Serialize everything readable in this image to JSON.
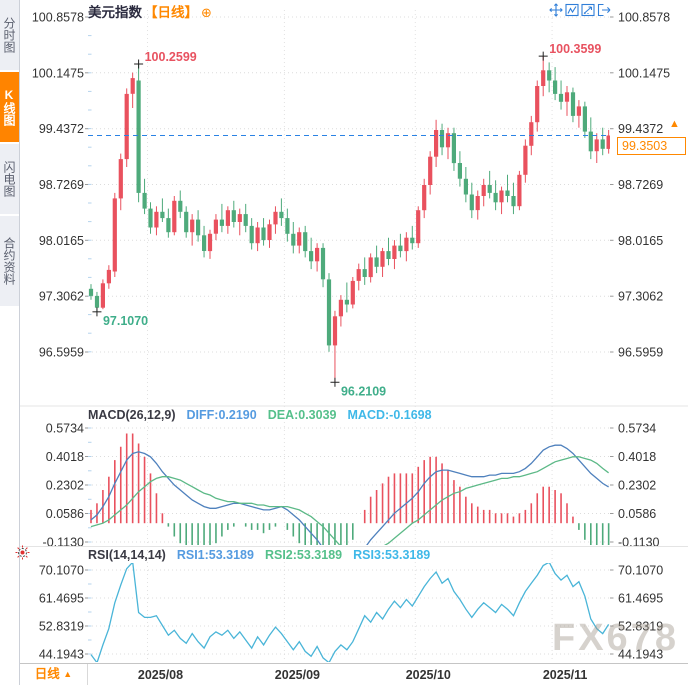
{
  "header": {
    "symbol": "美元指数",
    "period_tag": "【日线】",
    "add_icon": "⊕"
  },
  "sidebar": {
    "tabs": [
      {
        "label": "分时图",
        "active": false
      },
      {
        "label": "K线图",
        "active": true
      },
      {
        "label": "闪电图",
        "active": false
      },
      {
        "label": "合约资料",
        "active": false
      }
    ]
  },
  "toolbar": {
    "icons": [
      "crosshair-move",
      "indicator-scale-chart",
      "trend-arrow-chart",
      "exit-chart"
    ]
  },
  "price_marker": {
    "value": "99.3503",
    "arrow_up": "▲"
  },
  "bottom_bar": {
    "period_label": "日线",
    "arrow": "▲"
  },
  "watermark": {
    "text": "FX678"
  },
  "colors": {
    "up": "#e9515e",
    "down": "#4eaa7b",
    "accent_orange": "#ff8800",
    "dashed_price_line": "#2a82e4",
    "diff_line": "#4f81bd",
    "dea_line": "#5cb987",
    "rsi_line": "#4ab5d8",
    "annotation_high": "#e85260",
    "annotation_low": "#3fae8a",
    "axis_text": "#333333"
  },
  "chart_data": [
    {
      "type": "candlestick",
      "title": "美元指数 日线",
      "price_ticks": [
        "100.8578",
        "100.1475",
        "99.4372",
        "98.7269",
        "98.0165",
        "97.3062",
        "96.5959"
      ],
      "ylim": [
        96.2109,
        100.8578
      ],
      "current_price": 99.3503,
      "months": [
        {
          "label": "2025/08",
          "candle_index": 10
        },
        {
          "label": "2025/09",
          "candle_index": 33
        },
        {
          "label": "2025/10",
          "candle_index": 55
        },
        {
          "label": "2025/11",
          "candle_index": 78
        }
      ],
      "annotations": [
        {
          "candle_index": 8,
          "price": 100.2599,
          "text": "100.2599",
          "type": "high"
        },
        {
          "candle_index": 76,
          "price": 100.3599,
          "text": "100.3599",
          "type": "high"
        },
        {
          "candle_index": 1,
          "price": 97.107,
          "text": "97.1070",
          "type": "low"
        },
        {
          "candle_index": 41,
          "price": 96.2109,
          "text": "96.2109",
          "type": "low"
        }
      ],
      "ohlc_format": [
        "open",
        "high",
        "low",
        "close"
      ],
      "candles": [
        [
          97.4,
          97.46,
          97.26,
          97.31
        ],
        [
          97.31,
          97.36,
          97.107,
          97.16
        ],
        [
          97.16,
          97.52,
          97.14,
          97.47
        ],
        [
          97.47,
          97.7,
          97.4,
          97.64
        ],
        [
          97.62,
          98.62,
          97.55,
          98.55
        ],
        [
          98.55,
          99.12,
          98.4,
          99.05
        ],
        [
          99.05,
          99.95,
          98.95,
          99.88
        ],
        [
          99.88,
          100.15,
          99.7,
          100.08
        ],
        [
          100.05,
          100.2599,
          98.5,
          98.62
        ],
        [
          98.62,
          98.8,
          98.35,
          98.42
        ],
        [
          98.42,
          98.5,
          98.1,
          98.18
        ],
        [
          98.18,
          98.45,
          98.08,
          98.38
        ],
        [
          98.38,
          98.55,
          98.25,
          98.3
        ],
        [
          98.3,
          98.42,
          98.05,
          98.12
        ],
        [
          98.12,
          98.58,
          98.08,
          98.52
        ],
        [
          98.52,
          98.65,
          98.3,
          98.38
        ],
        [
          98.38,
          98.45,
          98.05,
          98.12
        ],
        [
          98.12,
          98.35,
          97.95,
          98.28
        ],
        [
          98.28,
          98.4,
          98.0,
          98.08
        ],
        [
          98.08,
          98.2,
          97.8,
          97.88
        ],
        [
          97.88,
          98.15,
          97.78,
          98.1
        ],
        [
          98.1,
          98.35,
          98.02,
          98.28
        ],
        [
          98.28,
          98.48,
          98.12,
          98.2
        ],
        [
          98.2,
          98.45,
          98.1,
          98.4
        ],
        [
          98.4,
          98.52,
          98.18,
          98.25
        ],
        [
          98.25,
          98.42,
          98.08,
          98.35
        ],
        [
          98.35,
          98.48,
          98.12,
          98.2
        ],
        [
          98.2,
          98.3,
          97.9,
          97.98
        ],
        [
          97.98,
          98.25,
          97.88,
          98.18
        ],
        [
          98.18,
          98.3,
          97.95,
          98.02
        ],
        [
          98.02,
          98.28,
          97.92,
          98.22
        ],
        [
          98.22,
          98.45,
          98.1,
          98.38
        ],
        [
          98.38,
          98.55,
          98.2,
          98.3
        ],
        [
          98.3,
          98.42,
          98.0,
          98.1
        ],
        [
          98.1,
          98.25,
          97.85,
          97.95
        ],
        [
          97.95,
          98.18,
          97.85,
          98.12
        ],
        [
          98.12,
          98.2,
          97.8,
          97.88
        ],
        [
          97.88,
          98.05,
          97.65,
          97.75
        ],
        [
          97.75,
          97.98,
          97.62,
          97.92
        ],
        [
          97.92,
          97.98,
          97.42,
          97.52
        ],
        [
          97.52,
          97.6,
          96.6,
          96.68
        ],
        [
          96.68,
          97.12,
          96.2109,
          97.05
        ],
        [
          97.05,
          97.32,
          96.92,
          97.26
        ],
        [
          97.26,
          97.48,
          97.1,
          97.2
        ],
        [
          97.2,
          97.55,
          97.15,
          97.5
        ],
        [
          97.5,
          97.72,
          97.38,
          97.65
        ],
        [
          97.65,
          97.8,
          97.45,
          97.55
        ],
        [
          97.55,
          97.85,
          97.48,
          97.8
        ],
        [
          97.8,
          97.95,
          97.6,
          97.68
        ],
        [
          97.68,
          97.92,
          97.55,
          97.88
        ],
        [
          97.88,
          98.05,
          97.7,
          97.78
        ],
        [
          97.78,
          98.02,
          97.65,
          97.95
        ],
        [
          97.95,
          98.1,
          97.8,
          97.88
        ],
        [
          97.88,
          98.12,
          97.75,
          98.05
        ],
        [
          98.05,
          98.2,
          97.9,
          97.98
        ],
        [
          97.98,
          98.45,
          97.92,
          98.4
        ],
        [
          98.4,
          98.8,
          98.3,
          98.72
        ],
        [
          98.72,
          99.15,
          98.6,
          99.08
        ],
        [
          99.08,
          99.55,
          98.95,
          99.42
        ],
        [
          99.42,
          99.5,
          99.1,
          99.2
        ],
        [
          99.2,
          99.45,
          99.05,
          99.38
        ],
        [
          99.38,
          99.45,
          98.9,
          99.0
        ],
        [
          99.0,
          99.15,
          98.7,
          98.8
        ],
        [
          98.8,
          98.95,
          98.5,
          98.6
        ],
        [
          98.6,
          98.75,
          98.3,
          98.4
        ],
        [
          98.4,
          98.65,
          98.28,
          98.58
        ],
        [
          98.58,
          98.8,
          98.45,
          98.72
        ],
        [
          98.72,
          98.9,
          98.55,
          98.62
        ],
        [
          98.62,
          98.78,
          98.4,
          98.5
        ],
        [
          98.5,
          98.7,
          98.35,
          98.65
        ],
        [
          98.65,
          98.85,
          98.5,
          98.58
        ],
        [
          98.58,
          98.75,
          98.35,
          98.45
        ],
        [
          98.45,
          98.9,
          98.4,
          98.85
        ],
        [
          98.85,
          99.3,
          98.75,
          99.22
        ],
        [
          99.22,
          99.6,
          99.1,
          99.52
        ],
        [
          99.52,
          100.05,
          99.4,
          99.98
        ],
        [
          99.98,
          100.3599,
          99.85,
          100.18
        ],
        [
          100.18,
          100.28,
          99.9,
          100.05
        ],
        [
          100.05,
          100.22,
          99.8,
          99.88
        ],
        [
          99.88,
          100.05,
          99.68,
          99.78
        ],
        [
          99.78,
          99.98,
          99.6,
          99.9
        ],
        [
          99.9,
          99.96,
          99.52,
          99.6
        ],
        [
          99.6,
          99.8,
          99.45,
          99.72
        ],
        [
          99.72,
          99.78,
          99.32,
          99.4
        ],
        [
          99.4,
          99.58,
          99.05,
          99.15
        ],
        [
          99.15,
          99.38,
          99.0,
          99.3
        ],
        [
          99.3,
          99.45,
          99.1,
          99.18
        ],
        [
          99.18,
          99.42,
          99.12,
          99.3503
        ]
      ]
    },
    {
      "type": "macd",
      "legend": {
        "name": "MACD(26,12,9)",
        "diff": "DIFF:0.2190",
        "dea": "DEA:0.3039",
        "macd": "MACD:-0.1698"
      },
      "params": [
        26,
        12,
        9
      ],
      "values": {
        "diff": 0.219,
        "dea": 0.3039,
        "macd": -0.1698
      },
      "ticks": [
        "0.5734",
        "0.4018",
        "0.2302",
        "0.0586",
        "-0.1130"
      ],
      "diff_series": [
        0.02,
        0.05,
        0.1,
        0.16,
        0.24,
        0.31,
        0.38,
        0.42,
        0.43,
        0.42,
        0.4,
        0.36,
        0.31,
        0.27,
        0.23,
        0.2,
        0.17,
        0.14,
        0.12,
        0.1,
        0.09,
        0.09,
        0.1,
        0.11,
        0.12,
        0.12,
        0.11,
        0.1,
        0.09,
        0.08,
        0.08,
        0.09,
        0.1,
        0.08,
        0.05,
        0.02,
        -0.02,
        -0.06,
        -0.1,
        -0.15,
        -0.22,
        -0.28,
        -0.3,
        -0.28,
        -0.24,
        -0.2,
        -0.15,
        -0.1,
        -0.06,
        -0.02,
        0.02,
        0.06,
        0.09,
        0.12,
        0.15,
        0.19,
        0.24,
        0.28,
        0.31,
        0.32,
        0.32,
        0.31,
        0.3,
        0.29,
        0.28,
        0.28,
        0.28,
        0.29,
        0.29,
        0.3,
        0.3,
        0.3,
        0.31,
        0.33,
        0.36,
        0.4,
        0.44,
        0.46,
        0.47,
        0.47,
        0.45,
        0.42,
        0.38,
        0.34,
        0.3,
        0.27,
        0.24,
        0.219
      ],
      "dea_series": [
        -0.02,
        -0.01,
        0.0,
        0.02,
        0.05,
        0.08,
        0.11,
        0.15,
        0.19,
        0.22,
        0.25,
        0.27,
        0.28,
        0.28,
        0.27,
        0.26,
        0.24,
        0.22,
        0.2,
        0.18,
        0.17,
        0.15,
        0.14,
        0.13,
        0.13,
        0.12,
        0.12,
        0.12,
        0.11,
        0.11,
        0.1,
        0.1,
        0.1,
        0.1,
        0.09,
        0.08,
        0.06,
        0.04,
        0.01,
        -0.02,
        -0.06,
        -0.1,
        -0.14,
        -0.17,
        -0.19,
        -0.2,
        -0.19,
        -0.18,
        -0.16,
        -0.14,
        -0.12,
        -0.09,
        -0.06,
        -0.03,
        0.0,
        0.02,
        0.05,
        0.08,
        0.11,
        0.14,
        0.16,
        0.18,
        0.19,
        0.21,
        0.22,
        0.23,
        0.24,
        0.25,
        0.26,
        0.27,
        0.27,
        0.28,
        0.28,
        0.29,
        0.3,
        0.31,
        0.33,
        0.35,
        0.37,
        0.38,
        0.39,
        0.4,
        0.4,
        0.39,
        0.38,
        0.36,
        0.33,
        0.3039
      ],
      "histogram_rule": "2*(diff-dea)"
    },
    {
      "type": "rsi",
      "legend": {
        "name": "RSI(14,14,14)",
        "rsi1": "RSI1:53.3189",
        "rsi2": "RSI2:53.3189",
        "rsi3": "RSI3:53.3189"
      },
      "values": {
        "rsi1": 53.3189,
        "rsi2": 53.3189,
        "rsi3": 53.3189
      },
      "ticks": [
        "70.1070",
        "61.4695",
        "52.8319",
        "44.1943"
      ],
      "rsi_series": [
        44,
        41.5,
        47,
        52,
        60,
        65.5,
        70.5,
        72.5,
        57,
        55.5,
        55.5,
        56,
        53,
        50,
        51.5,
        49,
        47.5,
        50.5,
        48,
        46,
        49.5,
        51,
        50,
        51.5,
        49,
        51,
        48.5,
        46,
        49.5,
        47,
        50,
        52.5,
        50.5,
        48,
        45.5,
        48,
        45,
        43.5,
        46.5,
        43,
        41.5,
        45,
        47,
        45.5,
        48,
        52,
        56,
        54,
        57,
        55,
        58,
        60.5,
        58.5,
        61,
        59,
        62,
        65,
        67.5,
        69.5,
        66,
        67.5,
        63.5,
        61,
        58,
        55.5,
        58,
        60,
        58.5,
        57,
        59.5,
        58,
        56,
        60,
        63.5,
        66,
        68.5,
        71.5,
        72.5,
        69,
        67,
        68.5,
        65,
        66.5,
        62,
        55,
        52,
        50.5,
        53.3189
      ]
    }
  ]
}
